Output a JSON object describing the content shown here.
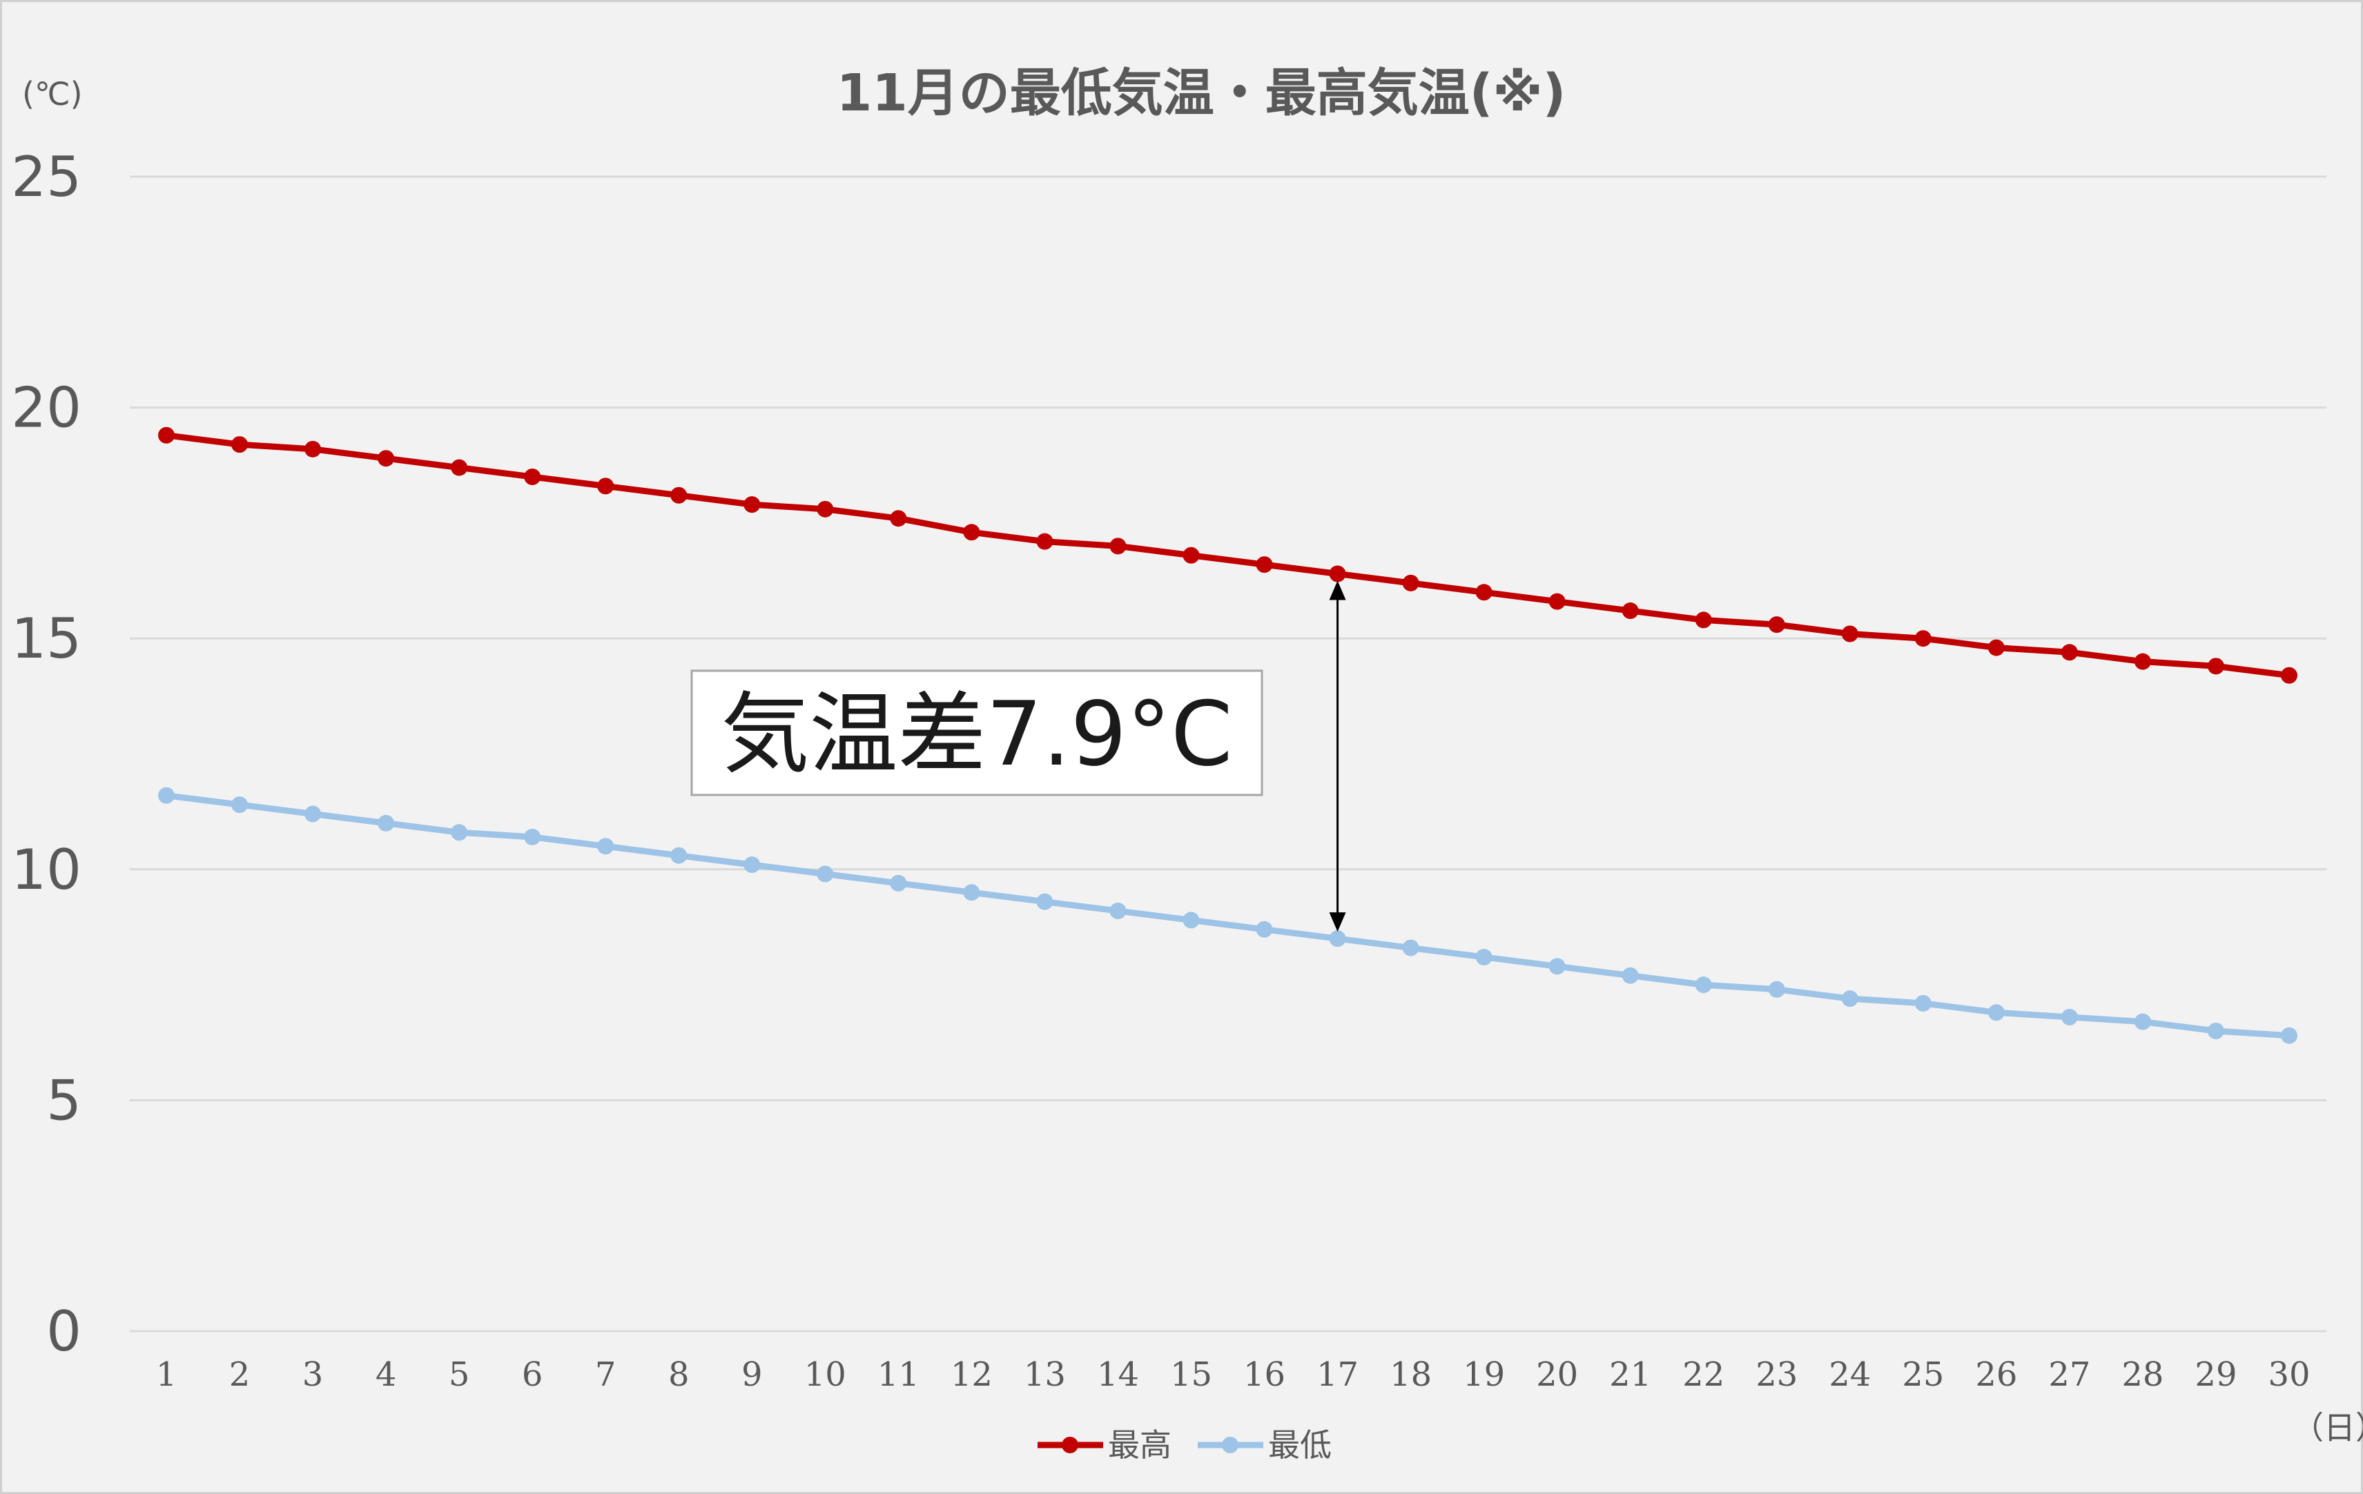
{
  "chart_data": {
    "type": "line",
    "title": "11月の最低気温・最高気温(※)",
    "y_unit_label": "(℃)",
    "x_unit_label": "（日）",
    "ylim": [
      0,
      25
    ],
    "yticks": [
      0,
      5,
      10,
      15,
      20,
      25
    ],
    "grid": true,
    "legend_position": "bottom-center",
    "categories": [
      "1",
      "2",
      "3",
      "4",
      "5",
      "6",
      "7",
      "8",
      "9",
      "10",
      "11",
      "12",
      "13",
      "14",
      "15",
      "16",
      "17",
      "18",
      "19",
      "20",
      "21",
      "22",
      "23",
      "24",
      "25",
      "26",
      "27",
      "28",
      "29",
      "30"
    ],
    "series": [
      {
        "name": "最高",
        "color": "#c00000",
        "values": [
          19.4,
          19.2,
          19.1,
          18.9,
          18.7,
          18.5,
          18.3,
          18.1,
          17.9,
          17.8,
          17.6,
          17.3,
          17.1,
          17.0,
          16.8,
          16.6,
          16.4,
          16.2,
          16.0,
          15.8,
          15.6,
          15.4,
          15.3,
          15.1,
          15.0,
          14.8,
          14.7,
          14.5,
          14.4,
          14.2
        ]
      },
      {
        "name": "最低",
        "color": "#9dc3e6",
        "values": [
          11.6,
          11.4,
          11.2,
          11.0,
          10.8,
          10.7,
          10.5,
          10.3,
          10.1,
          9.9,
          9.7,
          9.5,
          9.3,
          9.1,
          8.9,
          8.7,
          8.5,
          8.3,
          8.1,
          7.9,
          7.7,
          7.5,
          7.4,
          7.2,
          7.1,
          6.9,
          6.8,
          6.7,
          6.5,
          6.4
        ]
      }
    ],
    "annotation": {
      "text": "気温差7.9°C",
      "category": "17"
    }
  }
}
